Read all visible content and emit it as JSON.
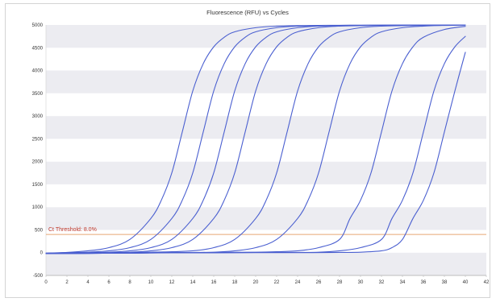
{
  "chart_data": {
    "type": "line",
    "title": "Fluorescence (RFU) vs Cycles",
    "xlabel": "",
    "ylabel": "",
    "xlim": [
      0,
      42
    ],
    "ylim": [
      -500,
      5000
    ],
    "xticks": [
      0,
      2,
      4,
      6,
      8,
      10,
      12,
      14,
      16,
      18,
      20,
      22,
      24,
      26,
      28,
      30,
      32,
      34,
      36,
      38,
      40,
      42
    ],
    "yticks": [
      -500,
      0,
      500,
      1000,
      1500,
      2000,
      2500,
      3000,
      3500,
      4000,
      4500,
      5000
    ],
    "grid": "horizontal alternating bands",
    "line_color": "#4a5fd0",
    "threshold": {
      "label": "Ct Threshold: 8.0%",
      "value": 400,
      "color": "#e6a875",
      "label_color": "#c0392b"
    },
    "series": [
      {
        "x": [
          0,
          2,
          4,
          6,
          8,
          10,
          11,
          12,
          13,
          14,
          15,
          16,
          17,
          18,
          20,
          22,
          24,
          26,
          28,
          30,
          32,
          34,
          36,
          38,
          40
        ],
        "y": [
          -10,
          5,
          40,
          110,
          290,
          750,
          1150,
          1750,
          2650,
          3550,
          4150,
          4520,
          4730,
          4850,
          4940,
          4975,
          4985,
          4990,
          4993,
          4995,
          4996,
          4997,
          4998,
          4999,
          5000
        ]
      },
      {
        "x": [
          0,
          2,
          4,
          6,
          8,
          10,
          12,
          13,
          14,
          15,
          16,
          17,
          18,
          19,
          20,
          22,
          24,
          26,
          28,
          30,
          32,
          34,
          36,
          38,
          40
        ],
        "y": [
          -10,
          0,
          10,
          40,
          110,
          290,
          750,
          1150,
          1750,
          2650,
          3550,
          4150,
          4520,
          4730,
          4850,
          4940,
          4975,
          4985,
          4990,
          4993,
          4995,
          4996,
          4997,
          4998,
          5000
        ]
      },
      {
        "x": [
          0,
          2,
          4,
          6,
          8,
          10,
          12,
          14,
          15,
          16,
          17,
          18,
          19,
          20,
          21,
          22,
          24,
          26,
          28,
          30,
          32,
          34,
          36,
          38,
          40
        ],
        "y": [
          -15,
          -10,
          0,
          10,
          40,
          110,
          290,
          750,
          1150,
          1750,
          2650,
          3550,
          4150,
          4520,
          4730,
          4850,
          4940,
          4975,
          4985,
          4990,
          4993,
          4995,
          4997,
          4998,
          5000
        ]
      },
      {
        "x": [
          0,
          2,
          4,
          6,
          8,
          10,
          12,
          14,
          16,
          17,
          18,
          19,
          20,
          21,
          22,
          23,
          24,
          26,
          28,
          30,
          32,
          34,
          36,
          38,
          40
        ],
        "y": [
          -15,
          -12,
          -8,
          0,
          10,
          40,
          110,
          290,
          750,
          1150,
          1750,
          2650,
          3550,
          4150,
          4520,
          4730,
          4850,
          4940,
          4975,
          4985,
          4990,
          4993,
          4995,
          4997,
          4999
        ]
      },
      {
        "x": [
          0,
          4,
          8,
          10,
          12,
          14,
          16,
          18,
          20,
          21,
          22,
          23,
          24,
          25,
          26,
          27,
          28,
          30,
          32,
          34,
          36,
          38,
          40
        ],
        "y": [
          -20,
          -15,
          0,
          10,
          20,
          40,
          110,
          290,
          750,
          1150,
          1750,
          2650,
          3550,
          4150,
          4520,
          4730,
          4850,
          4940,
          4975,
          4985,
          4990,
          4995,
          4998
        ]
      },
      {
        "x": [
          0,
          4,
          8,
          12,
          16,
          18,
          20,
          22,
          24,
          25,
          26,
          27,
          28,
          29,
          30,
          31,
          32,
          34,
          36,
          38,
          40
        ],
        "y": [
          -20,
          -15,
          -10,
          0,
          10,
          40,
          110,
          290,
          750,
          1150,
          1750,
          2650,
          3550,
          4150,
          4520,
          4730,
          4850,
          4940,
          4975,
          4990,
          4997
        ]
      },
      {
        "x": [
          0,
          4,
          8,
          12,
          16,
          20,
          22,
          24,
          26,
          28,
          29,
          30,
          31,
          32,
          33,
          34,
          35,
          36,
          38,
          40
        ],
        "y": [
          -20,
          -15,
          -10,
          0,
          5,
          10,
          20,
          40,
          110,
          290,
          750,
          1150,
          1750,
          2650,
          3550,
          4150,
          4520,
          4730,
          4900,
          4970
        ]
      },
      {
        "x": [
          0,
          4,
          8,
          12,
          16,
          20,
          24,
          26,
          28,
          30,
          32,
          33,
          34,
          35,
          36,
          37,
          38,
          39,
          40
        ],
        "y": [
          -20,
          -15,
          -10,
          0,
          0,
          5,
          5,
          10,
          40,
          110,
          290,
          750,
          1150,
          1750,
          2650,
          3550,
          4150,
          4520,
          4750
        ]
      },
      {
        "x": [
          0,
          4,
          8,
          12,
          16,
          20,
          24,
          28,
          30,
          32,
          33,
          34,
          35,
          36,
          37,
          38,
          39,
          40
        ],
        "y": [
          -20,
          -15,
          -10,
          -5,
          -5,
          0,
          0,
          5,
          10,
          40,
          110,
          290,
          750,
          1150,
          1750,
          2650,
          3550,
          4400
        ]
      }
    ]
  }
}
